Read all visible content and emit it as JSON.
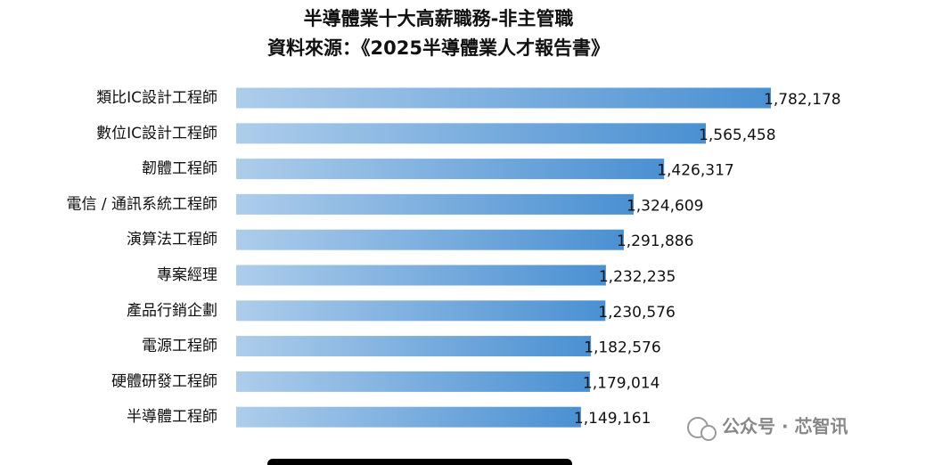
{
  "chart_data": {
    "type": "hbar",
    "title": "半導體業十大高薪職務-非主管職",
    "subtitle": "資料來源：《2025半導體業人才報告書》",
    "categories": [
      "類比IC設計工程師",
      "數位IC設計工程師",
      "韌體工程師",
      "電信 / 通訊系統工程師",
      "演算法工程師",
      "專案經理",
      "產品行銷企劃",
      "電源工程師",
      "硬體研發工程師",
      "半導體工程師"
    ],
    "values": [
      1782178,
      1565458,
      1426317,
      1324609,
      1291886,
      1232235,
      1230576,
      1182576,
      1179014,
      1149161
    ],
    "value_labels": [
      "1,782,178",
      "1,565,458",
      "1,426,317",
      "1,324,609",
      "1,291,886",
      "1,232,235",
      "1,230,576",
      "1,182,576",
      "1,179,014",
      "1,149,161"
    ],
    "color": "#4a90d2"
  },
  "watermark": "公众号 · 芯智讯"
}
